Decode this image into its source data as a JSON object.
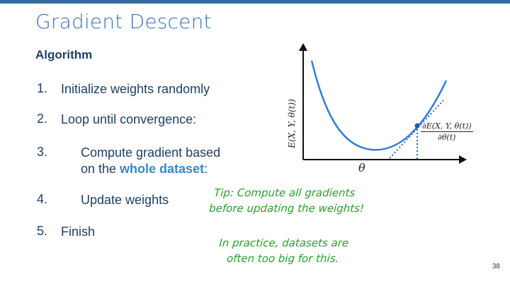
{
  "slide": {
    "title": "Gradient Descent",
    "section_heading": "Algorithm",
    "steps": [
      {
        "num": "1.",
        "text": "Initialize weights randomly"
      },
      {
        "num": "2.",
        "text": "Loop until convergence:"
      },
      {
        "num": "3.",
        "line1": "Compute gradient based",
        "line2_prefix": "on the ",
        "emph": "whole dataset",
        "line2_suffix": ":"
      },
      {
        "num": "4.",
        "text": "Update weights"
      },
      {
        "num": "5.",
        "text": "Finish"
      }
    ],
    "tip": {
      "line1": "Tip: Compute all gradients",
      "line2": "before updating the weights!",
      "line3": "In practice, datasets are",
      "line4": "often too big for this."
    },
    "page_number": "38"
  },
  "figure": {
    "y_axis_label": "E(X, Y, θ(t))",
    "x_axis_label": "θ",
    "derivative_numerator": "∂E(X, Y, θ(t))",
    "derivative_denominator": "∂θ(t)"
  },
  "colors": {
    "accent": "#2f6aa3",
    "title": "#3a73b3",
    "body_text": "#1f3f63",
    "emphasis": "#3a86c8",
    "tip": "#2a9d2a"
  }
}
